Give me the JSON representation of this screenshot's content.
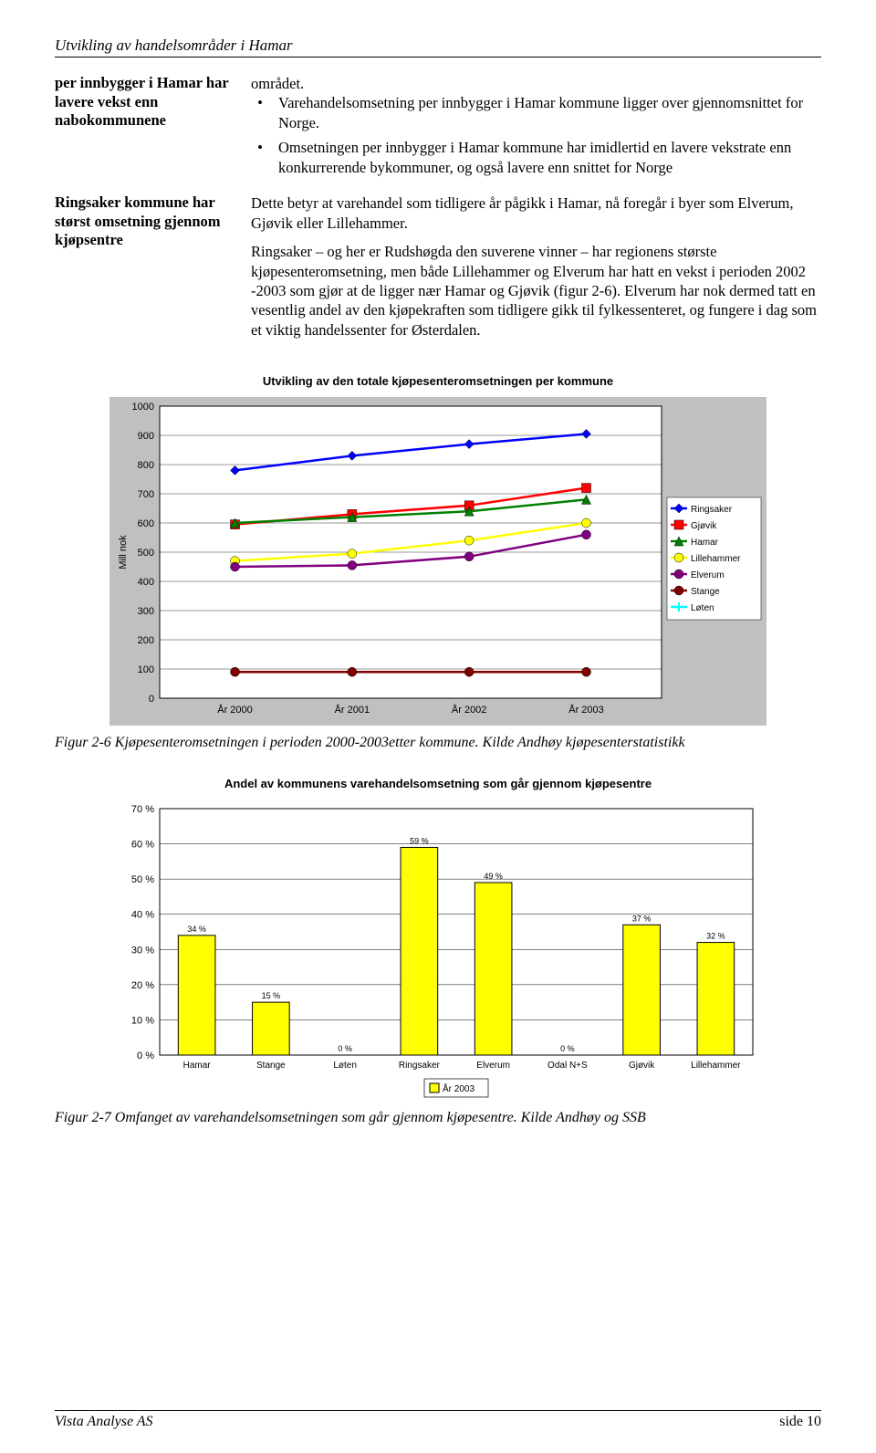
{
  "header": {
    "doc_title": "Utvikling av handelsområder i Hamar"
  },
  "block1": {
    "side": "per innbygger i Hamar har lavere vekst enn nabokommunene",
    "intro": "området.",
    "bullets": [
      "Varehandelsomsetning per innbygger i Hamar kommune ligger over gjennomsnittet for Norge.",
      "Omsetningen per innbygger i Hamar kommune har imidlertid en lavere vekstrate enn konkurrerende bykommuner, og også lavere enn snittet for Norge"
    ]
  },
  "block2": {
    "side": "Ringsaker kommune har størst omsetning gjennom kjøpsentre",
    "paras": [
      "Dette betyr at varehandel som tidligere år pågikk i Hamar, nå foregår i byer som Elverum, Gjøvik eller Lillehammer.",
      "Ringsaker – og her er Rudshøgda den suverene vinner – har regionens største kjøpesenteromsetning, men både Lillehammer og Elverum har hatt en vekst i perioden 2002 -2003 som gjør at de ligger nær Hamar og Gjøvik (figur 2-6). Elverum har nok dermed tatt en vesentlig andel av den kjøpekraften som tidligere gikk til fylkessenteret, og fungere i dag som et viktig handelssenter for Østerdalen."
    ]
  },
  "chart1": {
    "title": "Utvikling av den totale kjøpesenteromsetningen per kommune",
    "ylabel": "Mill nok",
    "ylim": [
      0,
      1000
    ],
    "ytick_step": 100,
    "categories": [
      "År 2000",
      "År 2001",
      "År 2002",
      "År 2003"
    ],
    "series": [
      {
        "name": "Ringsaker",
        "color": "#0000ff",
        "marker": "diamond",
        "values": [
          780,
          830,
          870,
          905
        ]
      },
      {
        "name": "Gjøvik",
        "color": "#ff0000",
        "marker": "square",
        "values": [
          595,
          630,
          660,
          720
        ]
      },
      {
        "name": "Hamar",
        "color": "#008000",
        "marker": "triangle",
        "values": [
          600,
          620,
          640,
          680
        ]
      },
      {
        "name": "Lillehammer",
        "color": "#ffff00",
        "marker": "circle",
        "values": [
          470,
          495,
          540,
          600
        ]
      },
      {
        "name": "Elverum",
        "color": "#800080",
        "marker": "circle",
        "values": [
          450,
          455,
          485,
          560
        ]
      },
      {
        "name": "Stange",
        "color": "#800000",
        "marker": "circle",
        "values": [
          90,
          90,
          90,
          90
        ]
      },
      {
        "name": "Løten",
        "color": "#00ffff",
        "marker": "plus",
        "values": [
          null,
          null,
          null,
          null
        ]
      }
    ],
    "background_color": "#c0c0c0",
    "plot_bg": "#ffffff",
    "caption": "Figur 2-6 Kjøpesenteromsetningen i perioden 2000-2003etter kommune. Kilde Andhøy kjøpesenterstatistikk"
  },
  "chart2": {
    "title": "Andel av kommunens varehandelsomsetning som går gjennom kjøpesentre",
    "ylim": [
      0,
      70
    ],
    "ytick_step": 10,
    "ytick_suffix": " %",
    "categories": [
      "Hamar",
      "Stange",
      "Løten",
      "Ringsaker",
      "Elverum",
      "Odal N+S",
      "Gjøvik",
      "Lillehammer"
    ],
    "values": [
      34,
      15,
      0,
      59,
      49,
      0,
      37,
      32
    ],
    "value_labels": [
      "34 %",
      "15 %",
      "0 %",
      "59 %",
      "49 %",
      "0 %",
      "37 %",
      "32 %"
    ],
    "bar_color": "#ffff00",
    "bar_border": "#000000",
    "plot_bg": "#ffffff",
    "legend_label": "År 2003",
    "caption": "Figur 2-7 Omfanget av varehandelsomsetningen som går gjennom kjøpesentre. Kilde Andhøy og SSB"
  },
  "footer": {
    "left": "Vista Analyse AS",
    "right": "side 10"
  }
}
